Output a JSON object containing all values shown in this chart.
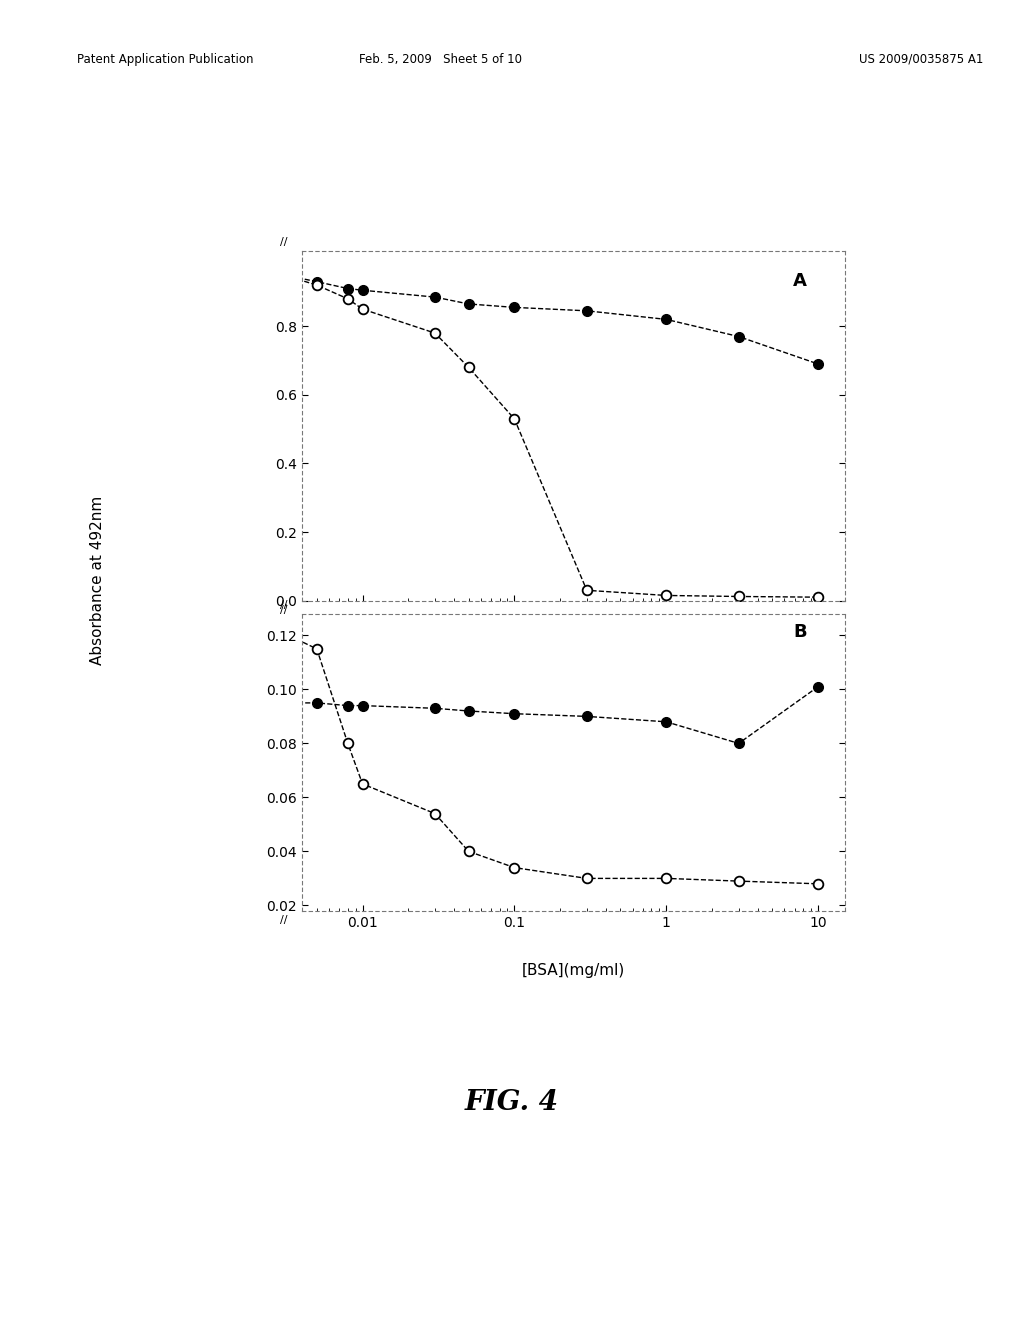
{
  "title_A": "A",
  "title_B": "B",
  "xlabel": "[BSA](mg/ml)",
  "ylabel": "Absorbance at 492nm",
  "background_color": "#ffffff",
  "header_left": "Patent Application Publication",
  "header_mid": "Feb. 5, 2009   Sheet 5 of 10",
  "header_right": "US 2009/0035875 A1",
  "fig_label": "FIG. 4",
  "panel_A": {
    "x": [
      0.003,
      0.005,
      0.008,
      0.01,
      0.03,
      0.05,
      0.1,
      0.3,
      1.0,
      3.0,
      10.0
    ],
    "filled": [
      0.95,
      0.93,
      0.91,
      0.905,
      0.885,
      0.865,
      0.855,
      0.845,
      0.82,
      0.77,
      0.69
    ],
    "open": [
      0.95,
      0.92,
      0.88,
      0.85,
      0.78,
      0.68,
      0.53,
      0.03,
      0.015,
      0.012,
      0.01
    ]
  },
  "panel_B": {
    "x": [
      0.003,
      0.005,
      0.008,
      0.01,
      0.03,
      0.05,
      0.1,
      0.3,
      1.0,
      3.0,
      10.0
    ],
    "filled": [
      0.095,
      0.095,
      0.094,
      0.094,
      0.093,
      0.092,
      0.091,
      0.09,
      0.088,
      0.08,
      0.101
    ],
    "open": [
      0.121,
      0.115,
      0.08,
      0.065,
      0.054,
      0.04,
      0.034,
      0.03,
      0.03,
      0.029,
      0.028
    ]
  },
  "panel_A_ylim": [
    0.0,
    1.02
  ],
  "panel_B_ylim": [
    0.018,
    0.128
  ],
  "panel_A_yticks": [
    0.0,
    0.2,
    0.4,
    0.6,
    0.8
  ],
  "panel_B_yticks": [
    0.02,
    0.04,
    0.06,
    0.08,
    0.1,
    0.12
  ],
  "xlim": [
    0.004,
    15.0
  ],
  "xticks": [
    0.01,
    0.1,
    1.0,
    10.0
  ],
  "xticklabels": [
    "0.01",
    "0.1",
    "1",
    "10"
  ]
}
